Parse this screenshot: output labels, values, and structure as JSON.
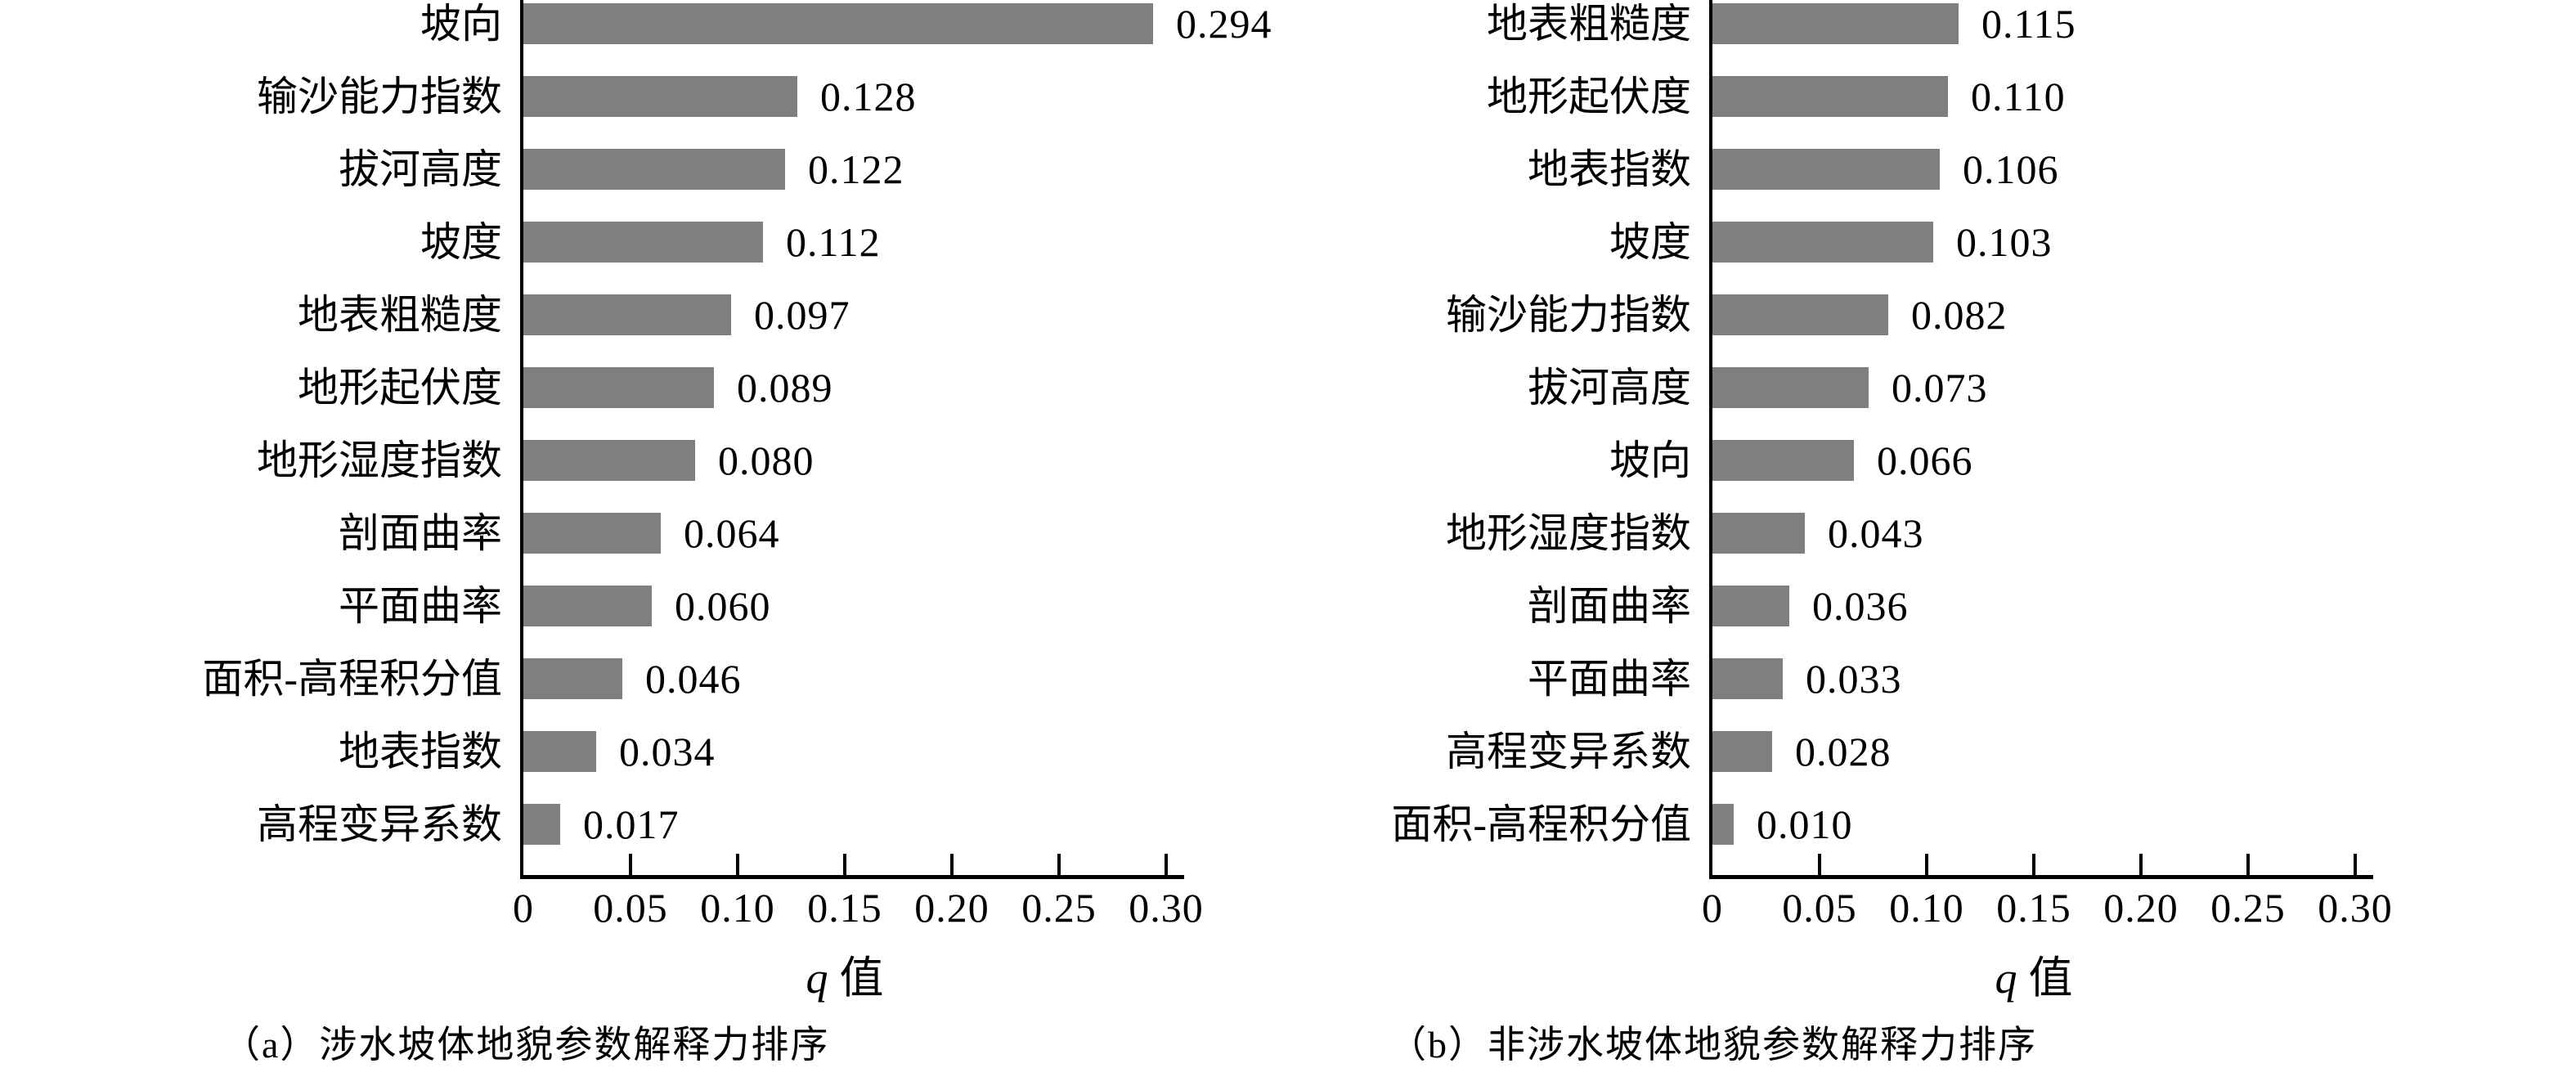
{
  "figure": {
    "bar_color": "#7f7f7f",
    "axis_color": "#000000",
    "background": "#ffffff"
  },
  "chart_data": [
    {
      "type": "bar",
      "orientation": "horizontal",
      "title": "",
      "caption": "（a）涉水坡体地貌参数解释力排序",
      "xlabel_var": "q",
      "xlabel_unit": "值",
      "ylabel": "",
      "categories": [
        "坡向",
        "输沙能力指数",
        "拔河高度",
        "坡度",
        "地表粗糙度",
        "地形起伏度",
        "地形湿度指数",
        "剖面曲率",
        "平面曲率",
        "面积-高程积分值",
        "地表指数",
        "高程变异系数"
      ],
      "values": [
        0.294,
        0.128,
        0.122,
        0.112,
        0.097,
        0.089,
        0.08,
        0.064,
        0.06,
        0.046,
        0.034,
        0.017
      ],
      "value_labels": [
        "0.294",
        "0.128",
        "0.122",
        "0.112",
        "0.097",
        "0.089",
        "0.080",
        "0.064",
        "0.060",
        "0.046",
        "0.034",
        "0.017"
      ],
      "xticks": [
        "0",
        "0.05",
        "0.10",
        "0.15",
        "0.20",
        "0.25",
        "0.30"
      ],
      "xtick_values": [
        0,
        0.05,
        0.1,
        0.15,
        0.2,
        0.25,
        0.3
      ],
      "xlim": [
        0,
        0.3
      ],
      "grid": false,
      "legend": null
    },
    {
      "type": "bar",
      "orientation": "horizontal",
      "title": "",
      "caption": "（b）非涉水坡体地貌参数解释力排序",
      "xlabel_var": "q",
      "xlabel_unit": "值",
      "ylabel": "",
      "categories": [
        "地表粗糙度",
        "地形起伏度",
        "地表指数",
        "坡度",
        "输沙能力指数",
        "拔河高度",
        "坡向",
        "地形湿度指数",
        "剖面曲率",
        "平面曲率",
        "高程变异系数",
        "面积-高程积分值"
      ],
      "values": [
        0.115,
        0.11,
        0.106,
        0.103,
        0.082,
        0.073,
        0.066,
        0.043,
        0.036,
        0.033,
        0.028,
        0.01
      ],
      "value_labels": [
        "0.115",
        "0.110",
        "0.106",
        "0.103",
        "0.082",
        "0.073",
        "0.066",
        "0.043",
        "0.036",
        "0.033",
        "0.028",
        "0.010"
      ],
      "xticks": [
        "0",
        "0.05",
        "0.10",
        "0.15",
        "0.20",
        "0.25",
        "0.30"
      ],
      "xtick_values": [
        0,
        0.05,
        0.1,
        0.15,
        0.2,
        0.25,
        0.3
      ],
      "xlim": [
        0,
        0.3
      ],
      "grid": false,
      "legend": null
    }
  ]
}
